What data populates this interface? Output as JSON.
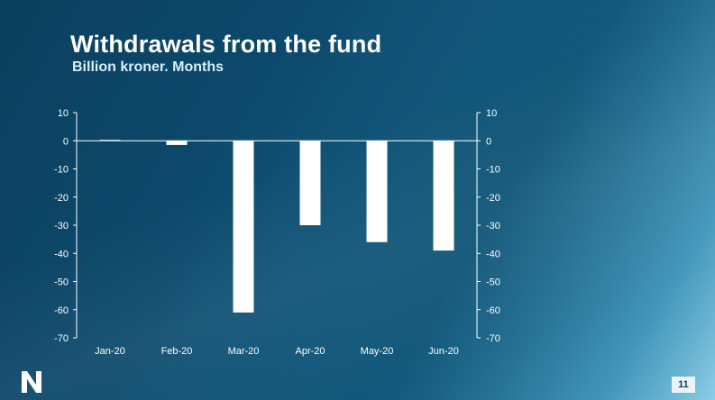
{
  "slide": {
    "title": "Withdrawals from the fund",
    "subtitle": "Billion kroner. Months",
    "page_number": "11",
    "logo_icon": "norges-bank-logo-icon"
  },
  "chart_data": {
    "type": "bar",
    "title": "Withdrawals from the fund",
    "subtitle": "Billion kroner. Months",
    "categories": [
      "Jan-20",
      "Feb-20",
      "Mar-20",
      "Apr-20",
      "May-20",
      "Jun-20"
    ],
    "values": [
      0.3,
      -1.5,
      -61,
      -30,
      -36,
      -39
    ],
    "ylim": [
      -70,
      10
    ],
    "yticks": [
      10,
      0,
      -10,
      -20,
      -30,
      -40,
      -50,
      -60,
      -70
    ],
    "secondary_y_axis": true,
    "grid": false,
    "bar_color": "#ffffff",
    "legend": "none"
  }
}
